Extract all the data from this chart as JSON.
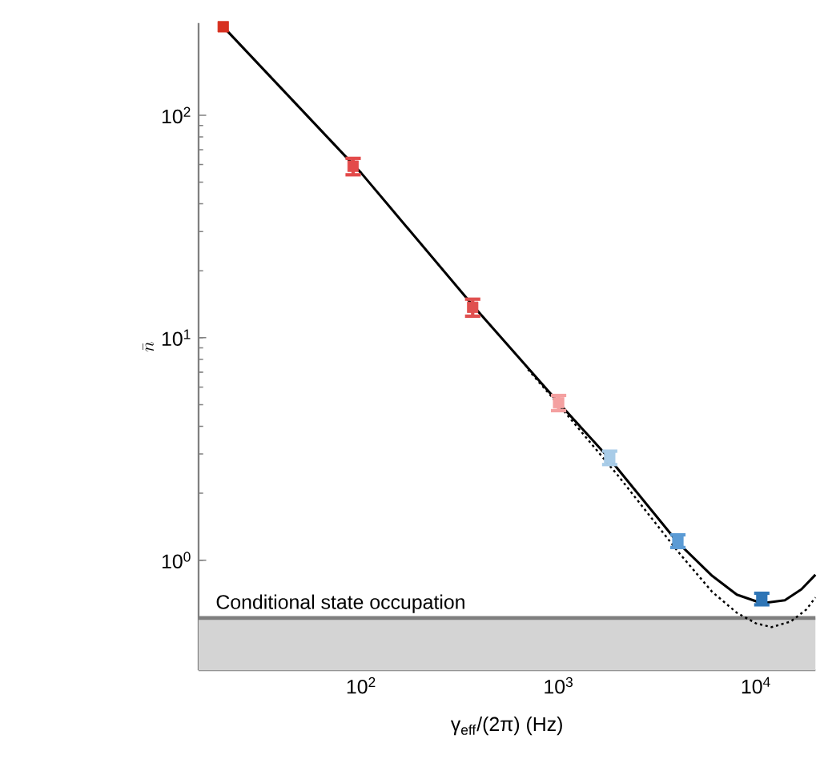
{
  "chart_data": {
    "type": "scatter",
    "xlabel": "γ$_{eff}$/(2π) (Hz)",
    "ylabel": "\\bar{n}",
    "log": "xy",
    "xlim": [
      15,
      20000
    ],
    "ylim": [
      0.32,
      260
    ],
    "xticks": [
      {
        "value": 100,
        "label": "10$^{2}$"
      },
      {
        "value": 1000,
        "label": "10$^{3}$"
      },
      {
        "value": 10000,
        "label": "10$^{4}$"
      }
    ],
    "yticks": [
      {
        "value": 1,
        "label": "10$^{0}$"
      },
      {
        "value": 10,
        "label": "10$^{1}$"
      },
      {
        "value": 100,
        "label": "10$^{2}$"
      }
    ],
    "bands": [
      {
        "axis": "y",
        "from": 0.32,
        "to": 0.55,
        "color": "#d4d4d4",
        "label": "Conditional state occupation"
      }
    ],
    "ref_lines": [
      {
        "axis": "y",
        "value": 0.55,
        "color": "#7f7f7f"
      }
    ],
    "series": [
      {
        "type": "line",
        "color": "#000000",
        "line_style": "dotted",
        "marker": "none",
        "x": [
          700,
          1000,
          2000,
          4000,
          6000,
          8000,
          10000,
          12000,
          15000,
          18000,
          20000
        ],
        "values": [
          7.2,
          5.0,
          2.4,
          1.1,
          0.72,
          0.58,
          0.52,
          0.5,
          0.53,
          0.6,
          0.68
        ]
      },
      {
        "type": "line",
        "color": "#000000",
        "line_style": "solid",
        "marker": "none",
        "x": [
          20,
          100,
          367,
          1000,
          1815,
          4020,
          6000,
          8000,
          10700,
          14000,
          17000,
          20000
        ],
        "values": [
          250,
          55,
          14,
          5.1,
          2.85,
          1.2,
          0.85,
          0.7,
          0.64,
          0.66,
          0.74,
          0.86
        ]
      },
      {
        "marker": "square",
        "colors": [
          "#d7301f",
          "#e34a4a",
          "#e0504f",
          "#f4a0a0",
          "#a8cce8",
          "#5b9bd5",
          "#2e75b6"
        ],
        "x": [
          20,
          91,
          367,
          1000,
          1815,
          4020,
          10700
        ],
        "values": [
          250,
          59,
          13.7,
          5.1,
          2.89,
          1.22,
          0.67
        ],
        "errors": [
          null,
          5,
          1.2,
          0.4,
          0.2,
          0.08,
          0.04
        ]
      }
    ]
  }
}
